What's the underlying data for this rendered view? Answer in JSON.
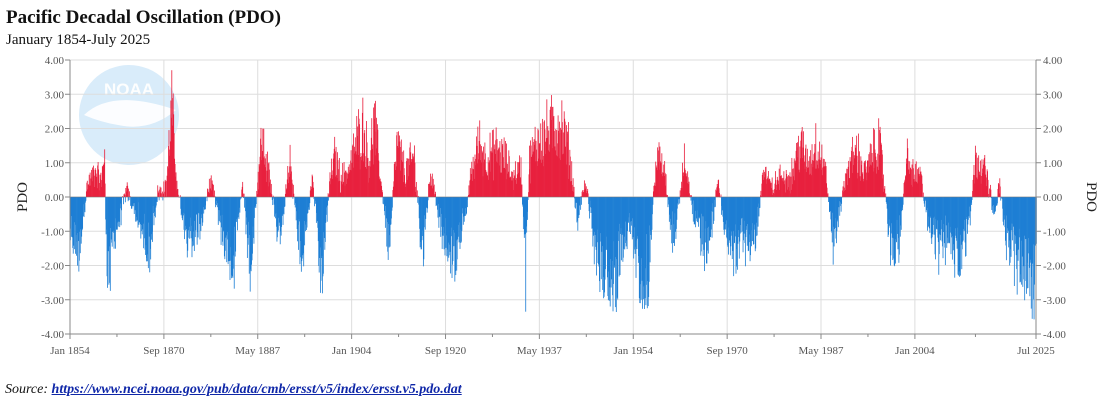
{
  "title": "Pacific Decadal Oscillation (PDO)",
  "subtitle": "January 1854-July 2025",
  "logo_text": "NOAA",
  "source": {
    "label": "Source:",
    "url_text": "https://www.ncei.noaa.gov/pub/data/cmb/ersst/v5/index/ersst.v5.pdo.dat"
  },
  "colors": {
    "positive": "#e8213e",
    "negative": "#1e7fd4",
    "grid": "#dddddd",
    "axis": "#888888"
  },
  "chart_data": {
    "type": "bar",
    "title": "Pacific Decadal Oscillation (PDO)",
    "subtitle": "January 1854-July 2025",
    "xlabel": "",
    "ylabel": "PDO",
    "y2label": "PDO",
    "ylim": [
      -4.0,
      4.0
    ],
    "yticks": [
      4.0,
      3.0,
      2.0,
      1.0,
      0.0,
      -1.0,
      -2.0,
      -3.0,
      -4.0
    ],
    "ytick_labels": [
      "4.00",
      "3.00",
      "2.00",
      "1.00",
      "0.00",
      "-1.00",
      "-2.00",
      "-3.00",
      "-4.00"
    ],
    "grid": true,
    "x_range": [
      1854.0,
      2025.5
    ],
    "xticks": [
      {
        "label": "Jan 1854",
        "t": 1854.0
      },
      {
        "label": "Sep 1870",
        "t": 1870.67
      },
      {
        "label": "May 1887",
        "t": 1887.33
      },
      {
        "label": "Jan 1904",
        "t": 1904.0
      },
      {
        "label": "Sep 1920",
        "t": 1920.67
      },
      {
        "label": "May 1937",
        "t": 1937.33
      },
      {
        "label": "Jan 1954",
        "t": 1954.0
      },
      {
        "label": "Sep 1970",
        "t": 1970.67
      },
      {
        "label": "May 1987",
        "t": 1987.33
      },
      {
        "label": "Jan 2004",
        "t": 2004.0
      },
      {
        "label": "Jul 2025",
        "t": 2025.5
      }
    ],
    "series_note": "Monthly values approximated from the figure, sampled as piecewise levels (t = decimal year, v = PDO index)",
    "anchors": [
      {
        "t": 1854.0,
        "v": -1.5
      },
      {
        "t": 1855.5,
        "v": -2.2
      },
      {
        "t": 1857.0,
        "v": 0.5
      },
      {
        "t": 1858.5,
        "v": 1.1
      },
      {
        "t": 1859.5,
        "v": 0.6
      },
      {
        "t": 1860.0,
        "v": 2.3
      },
      {
        "t": 1860.5,
        "v": -3.6
      },
      {
        "t": 1862.0,
        "v": -1.5
      },
      {
        "t": 1864.0,
        "v": 0.3
      },
      {
        "t": 1866.0,
        "v": -1.0
      },
      {
        "t": 1868.0,
        "v": -2.3
      },
      {
        "t": 1869.5,
        "v": 0.2
      },
      {
        "t": 1871.0,
        "v": 0.4
      },
      {
        "t": 1872.0,
        "v": 3.8
      },
      {
        "t": 1873.0,
        "v": 0.4
      },
      {
        "t": 1875.0,
        "v": -2.0
      },
      {
        "t": 1877.0,
        "v": -1.2
      },
      {
        "t": 1879.0,
        "v": 0.6
      },
      {
        "t": 1881.0,
        "v": -1.5
      },
      {
        "t": 1883.0,
        "v": -2.8
      },
      {
        "t": 1884.5,
        "v": 0.5
      },
      {
        "t": 1886.0,
        "v": -3.1
      },
      {
        "t": 1887.5,
        "v": 1.4
      },
      {
        "t": 1888.0,
        "v": 2.5
      },
      {
        "t": 1889.5,
        "v": 0.6
      },
      {
        "t": 1891.0,
        "v": -2.0
      },
      {
        "t": 1893.0,
        "v": 1.5
      },
      {
        "t": 1895.0,
        "v": -2.8
      },
      {
        "t": 1897.0,
        "v": 0.8
      },
      {
        "t": 1898.5,
        "v": -3.5
      },
      {
        "t": 1900.0,
        "v": 0.6
      },
      {
        "t": 1901.0,
        "v": 1.8
      },
      {
        "t": 1902.0,
        "v": 0.8
      },
      {
        "t": 1903.5,
        "v": 1.2
      },
      {
        "t": 1905.0,
        "v": 2.5
      },
      {
        "t": 1906.0,
        "v": 3.0
      },
      {
        "t": 1907.0,
        "v": 1.5
      },
      {
        "t": 1908.0,
        "v": 3.1
      },
      {
        "t": 1909.0,
        "v": 1.0
      },
      {
        "t": 1910.5,
        "v": -2.0
      },
      {
        "t": 1912.0,
        "v": 2.3
      },
      {
        "t": 1913.5,
        "v": 1.0
      },
      {
        "t": 1915.0,
        "v": 1.8
      },
      {
        "t": 1916.5,
        "v": -2.4
      },
      {
        "t": 1918.0,
        "v": 1.2
      },
      {
        "t": 1920.0,
        "v": -1.5
      },
      {
        "t": 1922.0,
        "v": -2.8
      },
      {
        "t": 1924.0,
        "v": -1.0
      },
      {
        "t": 1925.0,
        "v": 0.8
      },
      {
        "t": 1926.5,
        "v": 2.3
      },
      {
        "t": 1928.0,
        "v": 1.6
      },
      {
        "t": 1929.5,
        "v": 2.0
      },
      {
        "t": 1931.0,
        "v": 1.7
      },
      {
        "t": 1932.5,
        "v": 0.9
      },
      {
        "t": 1934.0,
        "v": 1.3
      },
      {
        "t": 1934.8,
        "v": -3.4
      },
      {
        "t": 1935.5,
        "v": 1.5
      },
      {
        "t": 1937.0,
        "v": 2.4
      },
      {
        "t": 1938.5,
        "v": 2.7
      },
      {
        "t": 1940.0,
        "v": 3.0
      },
      {
        "t": 1941.0,
        "v": 3.2
      },
      {
        "t": 1942.5,
        "v": 2.0
      },
      {
        "t": 1944.0,
        "v": -1.0
      },
      {
        "t": 1945.5,
        "v": 0.6
      },
      {
        "t": 1947.0,
        "v": -2.0
      },
      {
        "t": 1949.0,
        "v": -3.2
      },
      {
        "t": 1950.5,
        "v": -3.6
      },
      {
        "t": 1952.0,
        "v": -2.0
      },
      {
        "t": 1953.5,
        "v": -1.5
      },
      {
        "t": 1955.0,
        "v": -3.0
      },
      {
        "t": 1956.5,
        "v": -3.5
      },
      {
        "t": 1958.0,
        "v": 1.8
      },
      {
        "t": 1959.5,
        "v": 1.0
      },
      {
        "t": 1961.0,
        "v": -2.0
      },
      {
        "t": 1963.0,
        "v": 1.4
      },
      {
        "t": 1965.0,
        "v": -1.0
      },
      {
        "t": 1967.0,
        "v": -2.2
      },
      {
        "t": 1969.0,
        "v": 0.5
      },
      {
        "t": 1971.0,
        "v": -2.4
      },
      {
        "t": 1973.0,
        "v": -1.8
      },
      {
        "t": 1975.5,
        "v": -2.2
      },
      {
        "t": 1977.0,
        "v": 1.2
      },
      {
        "t": 1978.5,
        "v": 0.4
      },
      {
        "t": 1980.0,
        "v": 0.8
      },
      {
        "t": 1982.0,
        "v": 0.9
      },
      {
        "t": 1983.5,
        "v": 2.3
      },
      {
        "t": 1985.0,
        "v": 1.4
      },
      {
        "t": 1986.5,
        "v": 2.3
      },
      {
        "t": 1988.0,
        "v": 1.2
      },
      {
        "t": 1989.5,
        "v": -2.0
      },
      {
        "t": 1990.5,
        "v": -0.8
      },
      {
        "t": 1992.0,
        "v": 1.2
      },
      {
        "t": 1993.5,
        "v": 2.0
      },
      {
        "t": 1995.0,
        "v": 1.0
      },
      {
        "t": 1996.5,
        "v": 1.8
      },
      {
        "t": 1997.5,
        "v": 2.5
      },
      {
        "t": 1998.5,
        "v": 0.6
      },
      {
        "t": 1999.5,
        "v": -2.3
      },
      {
        "t": 2001.0,
        "v": -2.0
      },
      {
        "t": 2002.5,
        "v": 1.6
      },
      {
        "t": 2003.5,
        "v": 1.0
      },
      {
        "t": 2005.0,
        "v": 0.9
      },
      {
        "t": 2006.0,
        "v": -1.0
      },
      {
        "t": 2007.5,
        "v": -1.8
      },
      {
        "t": 2008.5,
        "v": -2.3
      },
      {
        "t": 2010.0,
        "v": -1.5
      },
      {
        "t": 2011.5,
        "v": -2.8
      },
      {
        "t": 2012.5,
        "v": -2.5
      },
      {
        "t": 2013.5,
        "v": -1.3
      },
      {
        "t": 2014.5,
        "v": 1.2
      },
      {
        "t": 2015.0,
        "v": 1.8
      },
      {
        "t": 2016.0,
        "v": 1.4
      },
      {
        "t": 2017.0,
        "v": 0.6
      },
      {
        "t": 2018.0,
        "v": -0.7
      },
      {
        "t": 2019.0,
        "v": 0.5
      },
      {
        "t": 2020.0,
        "v": -1.6
      },
      {
        "t": 2021.0,
        "v": -2.2
      },
      {
        "t": 2022.0,
        "v": -2.8
      },
      {
        "t": 2023.0,
        "v": -3.1
      },
      {
        "t": 2024.0,
        "v": -2.8
      },
      {
        "t": 2025.0,
        "v": -3.8
      },
      {
        "t": 2025.5,
        "v": -2.6
      }
    ]
  }
}
